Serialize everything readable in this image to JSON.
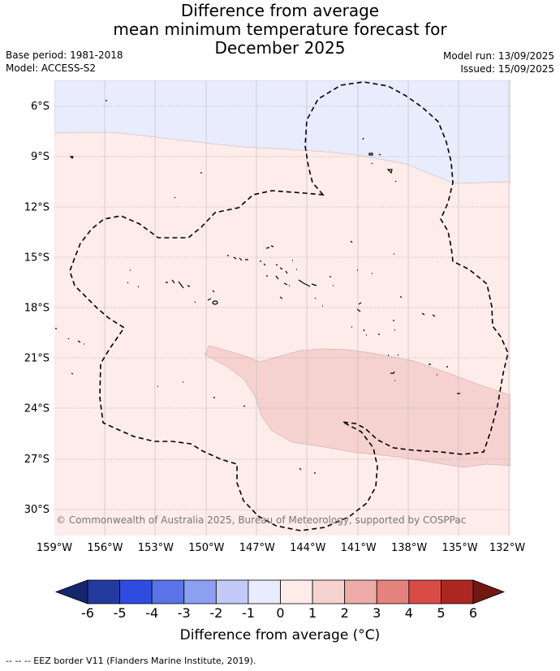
{
  "title": {
    "line1": "Difference from average",
    "line2": "mean minimum temperature forecast for",
    "line3": "December 2025"
  },
  "meta": {
    "base_period": "Base period: 1981-2018",
    "model": "Model: ACCESS-S2",
    "model_run": "Model run: 13/09/2025",
    "issued": "Issued: 15/09/2025"
  },
  "axes": {
    "lat_labels": [
      "6°S",
      "9°S",
      "12°S",
      "15°S",
      "18°S",
      "21°S",
      "24°S",
      "27°S",
      "30°S"
    ],
    "lat_values": [
      -6,
      -9,
      -12,
      -15,
      -18,
      -21,
      -24,
      -27,
      -30
    ],
    "lon_labels": [
      "159°W",
      "156°W",
      "153°W",
      "150°W",
      "147°W",
      "144°W",
      "141°W",
      "138°W",
      "135°W",
      "132°W"
    ],
    "lon_values": [
      -159,
      -156,
      -153,
      -150,
      -147,
      -144,
      -141,
      -138,
      -135,
      -132
    ]
  },
  "map_extent": {
    "lon_min": -159,
    "lon_max": -132,
    "lat_min": -31.6,
    "lat_max": -4.5
  },
  "copyright": "© Commonwealth of Australia 2025, Bureau of Meteorology, supported by COSPPac",
  "colorbar": {
    "title": "Difference from average (°C)",
    "tick_labels": [
      "-6",
      "-5",
      "-4",
      "-3",
      "-2",
      "-1",
      "0",
      "1",
      "2",
      "3",
      "4",
      "5",
      "6"
    ],
    "colors": [
      "#233a9e",
      "#2e4de0",
      "#5a73e8",
      "#8c9ff0",
      "#c2cbf7",
      "#e8ecfc",
      "#fdecea",
      "#f5d2d0",
      "#eeaba8",
      "#e6827d",
      "#d94b45",
      "#ad2722"
    ],
    "low_extend_color": "#16266e",
    "high_extend_color": "#721813"
  },
  "legend_footnote": "-- -- -- EEZ border V11 (Flanders Marine Institute, 2019)."
}
